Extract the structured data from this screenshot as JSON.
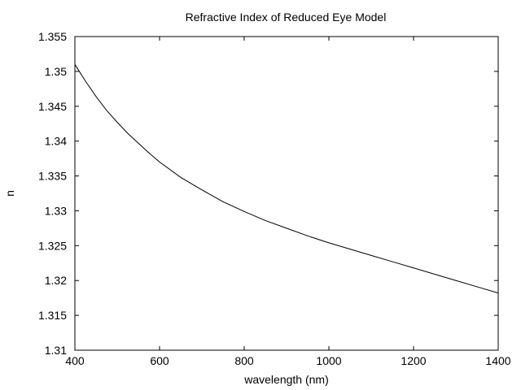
{
  "chart_data": {
    "type": "line",
    "title": "Refractive Index of Reduced Eye Model",
    "xlabel": "wavelength (nm)",
    "ylabel": "n",
    "xlim": [
      400,
      1400
    ],
    "ylim": [
      1.31,
      1.355
    ],
    "x_ticks": [
      400,
      600,
      800,
      1000,
      1200,
      1400
    ],
    "x_tick_labels": [
      "400",
      "600",
      "800",
      "1000",
      "1200",
      "1400"
    ],
    "y_ticks": [
      1.31,
      1.315,
      1.32,
      1.325,
      1.33,
      1.335,
      1.34,
      1.345,
      1.35,
      1.355
    ],
    "y_tick_labels": [
      "1.31",
      "1.315",
      "1.32",
      "1.325",
      "1.33",
      "1.335",
      "1.34",
      "1.345",
      "1.35",
      "1.355"
    ],
    "grid": false,
    "line_color": "#000000",
    "series": [
      {
        "name": "",
        "x": [
          400,
          425,
          450,
          475,
          500,
          525,
          550,
          575,
          600,
          650,
          700,
          750,
          800,
          850,
          900,
          950,
          1000,
          1050,
          1100,
          1150,
          1200,
          1250,
          1300,
          1350,
          1400
        ],
        "y": [
          1.351,
          1.3486,
          1.3464,
          1.3444,
          1.3427,
          1.3411,
          1.3397,
          1.3383,
          1.337,
          1.3348,
          1.333,
          1.3313,
          1.3299,
          1.3286,
          1.3275,
          1.3264,
          1.3254,
          1.3245,
          1.3236,
          1.3227,
          1.3218,
          1.3209,
          1.32,
          1.3191,
          1.3182
        ]
      }
    ]
  }
}
